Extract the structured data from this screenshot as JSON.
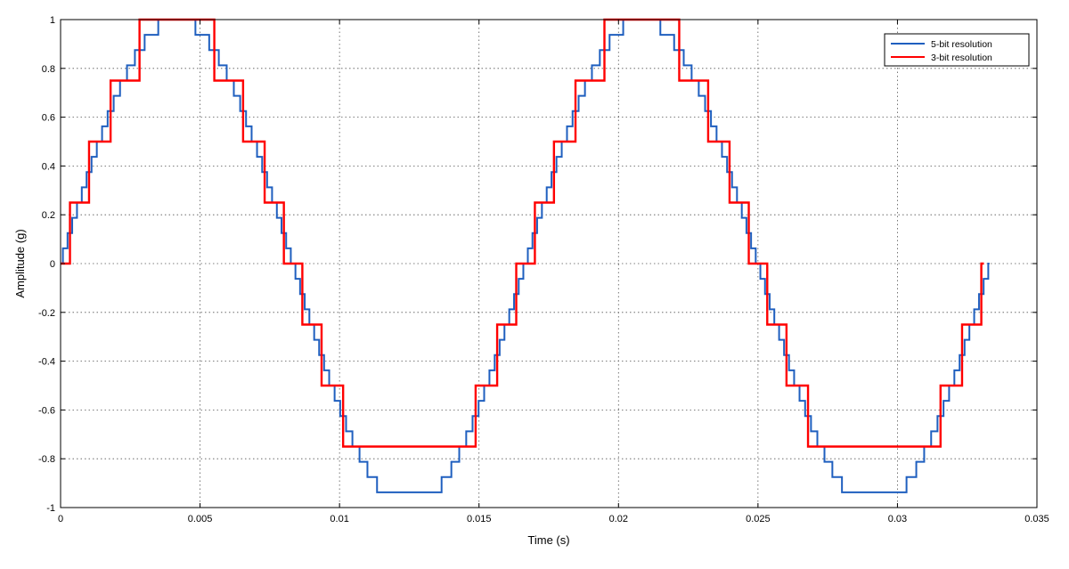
{
  "chart_data": {
    "type": "line",
    "title": "",
    "xlabel": "Time (s)",
    "ylabel": "Amplitude (g)",
    "xlim": [
      0,
      0.035
    ],
    "ylim": [
      -1,
      1
    ],
    "grid": true,
    "legend_position": "top-right",
    "x_ticks": [
      {
        "value": 0,
        "label": "0"
      },
      {
        "value": 0.005,
        "label": "0.005"
      },
      {
        "value": 0.01,
        "label": "0.01"
      },
      {
        "value": 0.015,
        "label": "0.015"
      },
      {
        "value": 0.02,
        "label": "0.02"
      },
      {
        "value": 0.025,
        "label": "0.025"
      },
      {
        "value": 0.03,
        "label": "0.03"
      },
      {
        "value": 0.035,
        "label": "0.035"
      }
    ],
    "y_ticks": [
      {
        "value": 1,
        "label": "1"
      },
      {
        "value": 0.8,
        "label": "0.8"
      },
      {
        "value": 0.6,
        "label": "0.6"
      },
      {
        "value": 0.4,
        "label": "0.4"
      },
      {
        "value": 0.2,
        "label": "0.2"
      },
      {
        "value": 0,
        "label": "0"
      },
      {
        "value": -0.2,
        "label": "-0.2"
      },
      {
        "value": -0.4,
        "label": "-0.4"
      },
      {
        "value": -0.6,
        "label": "-0.6"
      },
      {
        "value": -0.8,
        "label": "-0.8"
      },
      {
        "value": -1,
        "label": "-1"
      }
    ],
    "series": [
      {
        "name": "5-bit resolution",
        "color": "#1f5fbf",
        "style": "step",
        "signal_frequency_hz": 60,
        "quantization_step": 0.0625,
        "x_range": [
          0,
          0.0333
        ],
        "y_range": [
          -0.9375,
          1
        ]
      },
      {
        "name": "3-bit resolution",
        "color": "#ff0000",
        "style": "step",
        "signal_frequency_hz": 60,
        "quantization_step": 0.25,
        "x_range": [
          0,
          0.0331
        ],
        "y_range": [
          -0.75,
          1
        ]
      }
    ]
  }
}
